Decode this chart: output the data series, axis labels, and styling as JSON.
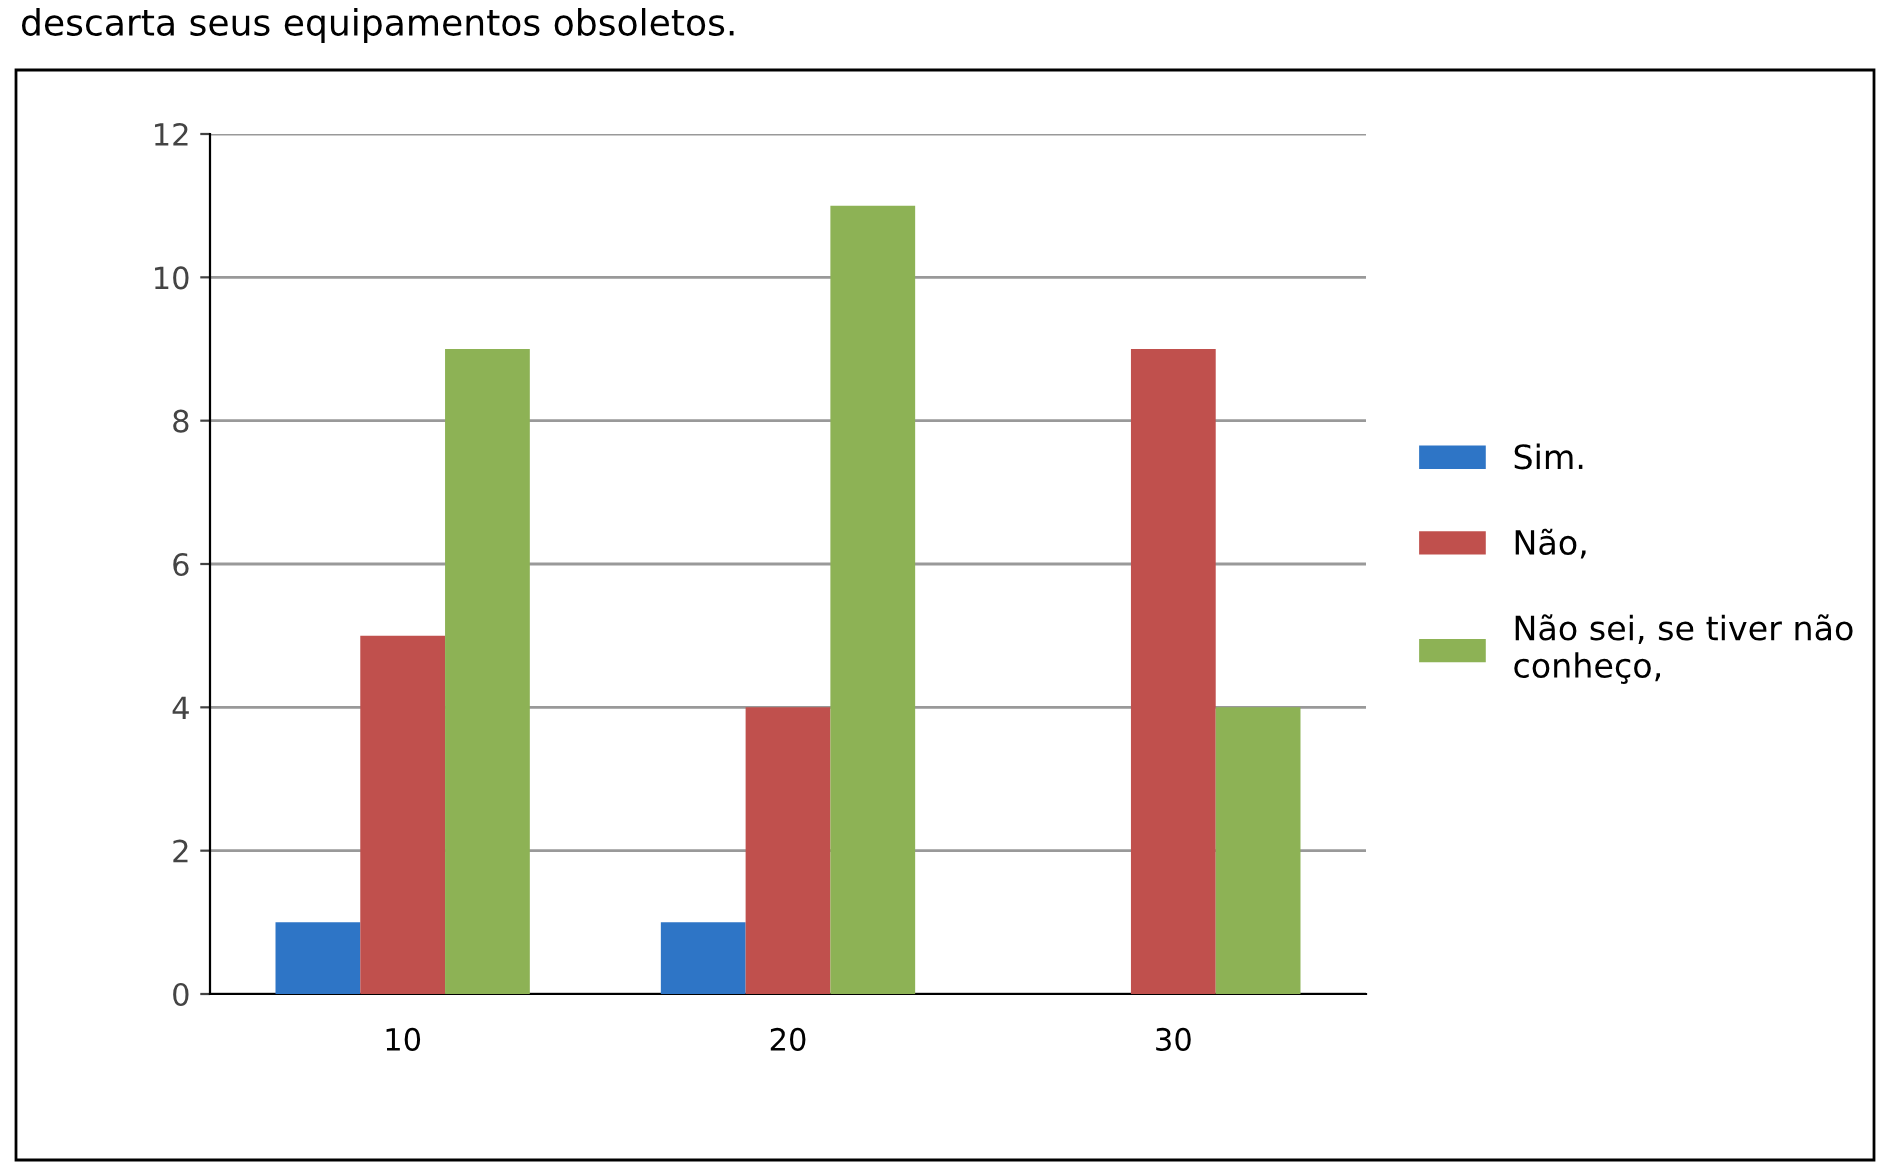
{
  "chart_data": {
    "type": "bar",
    "title": "descarta seus equipamentos obsoletos.",
    "categories": [
      "10",
      "20",
      "30"
    ],
    "series": [
      {
        "name": "Sim.",
        "color": "#2e75c6",
        "values": [
          1,
          1,
          0
        ]
      },
      {
        "name": "Não,",
        "color": "#c0504d",
        "values": [
          5,
          4,
          9
        ]
      },
      {
        "name": "Não sei, se tiver não\nconheço,",
        "color": "#8db255",
        "values": [
          9,
          11,
          4
        ]
      }
    ],
    "ylim": [
      0,
      12
    ],
    "yticks": [
      0,
      2,
      4,
      6,
      8,
      10,
      12
    ],
    "grid": "y",
    "legend": "right"
  }
}
